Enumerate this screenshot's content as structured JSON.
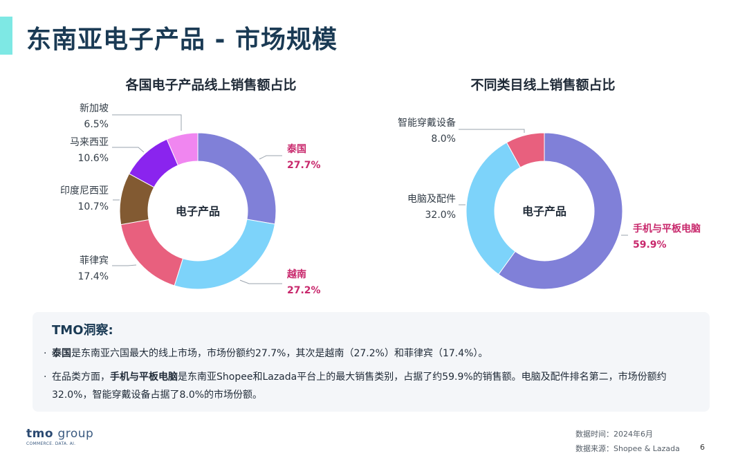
{
  "page": {
    "title": "东南亚电子产品 - 市场规模",
    "page_number": "6"
  },
  "chart_data": [
    {
      "type": "pie",
      "donut": true,
      "title": "各国电子产品线上销售额占比",
      "center_label": "电子产品",
      "categories": [
        "泰国",
        "越南",
        "菲律宾",
        "印度尼西亚",
        "马来西亚",
        "新加坡"
      ],
      "values": [
        27.7,
        27.2,
        17.4,
        10.7,
        10.6,
        6.5
      ],
      "value_labels": [
        "27.7%",
        "27.2%",
        "17.4%",
        "10.7%",
        "10.6%",
        "6.5%"
      ],
      "colors": [
        "#8080d8",
        "#7dd3fa",
        "#e8607e",
        "#825a32",
        "#8a24ee",
        "#f086f0"
      ],
      "highlighted": [
        "泰国",
        "越南"
      ]
    },
    {
      "type": "pie",
      "donut": true,
      "title": "不同类目线上销售额占比",
      "center_label": "电子产品",
      "categories": [
        "手机与平板电脑",
        "电脑及配件",
        "智能穿戴设备"
      ],
      "values": [
        59.9,
        32.0,
        8.0
      ],
      "value_labels": [
        "59.9%",
        "32.0%",
        "8.0%"
      ],
      "colors": [
        "#8080d8",
        "#7dd3fa",
        "#e8607e"
      ],
      "highlighted": [
        "手机与平板电脑"
      ]
    }
  ],
  "insights": {
    "title": "TMO洞察:",
    "bullet_char": "·",
    "b1_bold": "泰国",
    "b1_text": "是东南亚六国最大的线上市场，市场份额约27.7%，其次是越南（27.2%）和菲律宾（17.4%）。",
    "b2_pre": "在品类方面，",
    "b2_bold": "手机与平板电脑",
    "b2_text": "是东南亚Shopee和Lazada平台上的最大销售类别，占据了约59.9%的销售额。电脑及配件排名第二，市场份额约32.0%，智能穿戴设备占据了8.0%的市场份额。"
  },
  "footer": {
    "logo_main": "tmo",
    "logo_group": "group",
    "logo_sub": "COMMERCE. DATA. AI.",
    "data_time": "数据时间：2024年6月",
    "data_source": "数据来源：Shopee & Lazada"
  }
}
